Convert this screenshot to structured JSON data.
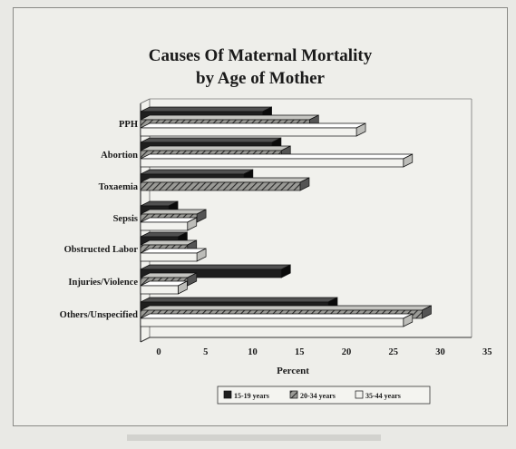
{
  "chart_data": {
    "type": "bar",
    "orientation": "horizontal",
    "title": [
      "Causes Of Maternal Mortality",
      "by Age of Mother"
    ],
    "xlabel": "Percent",
    "ylabel": "",
    "xlim": [
      0,
      35
    ],
    "xticks": [
      "0",
      "5",
      "10",
      "15",
      "20",
      "25",
      "30",
      "35"
    ],
    "categories": [
      "PPH",
      "Abortion",
      "Toxaemia",
      "Sepsis",
      "Obstructed Labor",
      "Injuries/Violence",
      "Others/Unspecified"
    ],
    "series": [
      {
        "name": "15-19 years",
        "values": [
          13,
          14,
          11,
          3,
          4,
          15,
          20
        ]
      },
      {
        "name": "20-34 years",
        "values": [
          18,
          15,
          17,
          6,
          5,
          5,
          30
        ]
      },
      {
        "name": "35-44 years",
        "values": [
          23,
          28,
          0,
          5,
          6,
          4,
          28
        ]
      }
    ],
    "legend_position": "bottom",
    "grid": false,
    "style": "3d",
    "colors": {
      "15-19 years": "#1e1e1e",
      "20-34 years": "#6e6e6e",
      "35-44 years": "#f2f2ee"
    }
  }
}
